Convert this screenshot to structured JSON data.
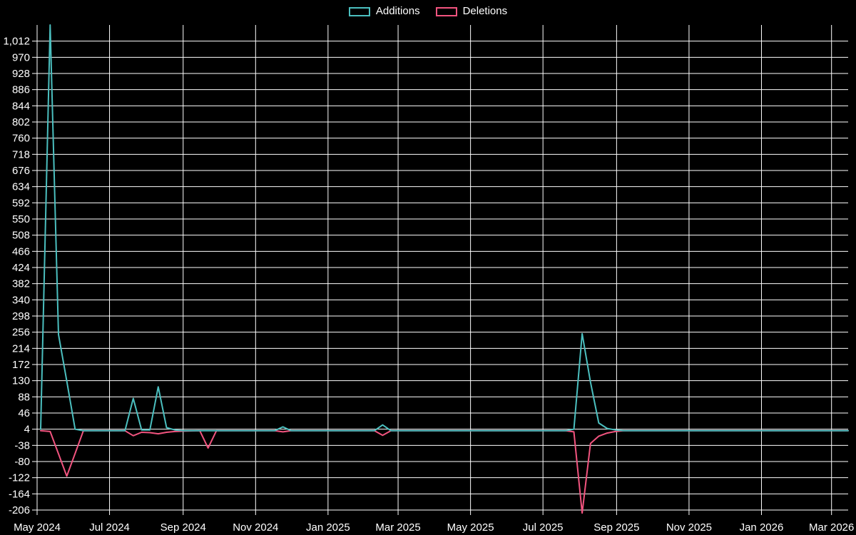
{
  "page": {
    "background_color": "#000000",
    "text_color": "#ffffff",
    "gridline_color": "#ffffff"
  },
  "legend": {
    "position": "top-center",
    "items": [
      {
        "label": "Additions",
        "color": "#4BBFBF"
      },
      {
        "label": "Deletions",
        "color": "#F2547F"
      }
    ]
  },
  "chart_data": {
    "type": "line",
    "title": "",
    "xlabel": "",
    "ylabel": "",
    "grid": true,
    "background": "#000000",
    "x_axis": {
      "kind": "time",
      "start_date": "2024-05-01",
      "end_date": "2026-03-15",
      "tick_dates": [
        "2024-05-01",
        "2024-07-01",
        "2024-09-01",
        "2024-11-01",
        "2025-01-01",
        "2025-03-01",
        "2025-05-01",
        "2025-07-01",
        "2025-09-01",
        "2025-11-01",
        "2026-01-01",
        "2026-03-01"
      ],
      "tick_labels": [
        "May 2024",
        "Jul 2024",
        "Sep 2024",
        "Nov 2024",
        "Jan 2025",
        "Mar 2025",
        "May 2025",
        "Jul 2025",
        "Sep 2025",
        "Nov 2025",
        "Jan 2026",
        "Mar 2026"
      ]
    },
    "y_axis": {
      "min": -214,
      "max": 1054,
      "tick_step": 42,
      "tick_values": [
        1012,
        970,
        928,
        886,
        844,
        802,
        760,
        718,
        676,
        634,
        592,
        550,
        508,
        466,
        424,
        382,
        340,
        298,
        256,
        214,
        172,
        130,
        88,
        46,
        4,
        -38,
        -80,
        -122,
        -164,
        -206
      ],
      "tick_labels": [
        "1,012",
        "970",
        "928",
        "886",
        "844",
        "802",
        "760",
        "718",
        "676",
        "634",
        "592",
        "550",
        "508",
        "466",
        "424",
        "382",
        "340",
        "298",
        "256",
        "214",
        "172",
        "130",
        "88",
        "46",
        "4",
        "-38",
        "-80",
        "-122",
        "-164",
        "-206"
      ]
    },
    "series": [
      {
        "name": "Additions",
        "color": "#4BBFBF",
        "points": [
          [
            "2024-05-04",
            4
          ],
          [
            "2024-05-12",
            1054
          ],
          [
            "2024-05-19",
            250
          ],
          [
            "2024-05-26",
            129
          ],
          [
            "2024-06-02",
            4
          ],
          [
            "2024-06-09",
            0
          ],
          [
            "2024-07-14",
            0
          ],
          [
            "2024-07-21",
            84
          ],
          [
            "2024-07-28",
            2
          ],
          [
            "2024-08-04",
            2
          ],
          [
            "2024-08-11",
            114
          ],
          [
            "2024-08-18",
            8
          ],
          [
            "2024-08-25",
            2
          ],
          [
            "2024-09-01",
            0
          ],
          [
            "2024-11-17",
            0
          ],
          [
            "2024-11-24",
            10
          ],
          [
            "2024-12-01",
            0
          ],
          [
            "2025-02-09",
            0
          ],
          [
            "2025-02-16",
            15
          ],
          [
            "2025-02-23",
            0
          ],
          [
            "2025-07-20",
            0
          ],
          [
            "2025-07-27",
            4
          ],
          [
            "2025-08-03",
            252
          ],
          [
            "2025-08-10",
            126
          ],
          [
            "2025-08-17",
            20
          ],
          [
            "2025-08-24",
            6
          ],
          [
            "2025-08-31",
            2
          ],
          [
            "2025-09-07",
            0
          ],
          [
            "2026-03-15",
            0
          ]
        ]
      },
      {
        "name": "Deletions",
        "color": "#F2547F",
        "points": [
          [
            "2024-05-04",
            0
          ],
          [
            "2024-05-12",
            -2
          ],
          [
            "2024-05-19",
            -60
          ],
          [
            "2024-05-26",
            -118
          ],
          [
            "2024-06-02",
            -59
          ],
          [
            "2024-06-09",
            0
          ],
          [
            "2024-07-14",
            0
          ],
          [
            "2024-07-21",
            -13
          ],
          [
            "2024-07-28",
            -4
          ],
          [
            "2024-08-04",
            -5
          ],
          [
            "2024-08-11",
            -8
          ],
          [
            "2024-08-18",
            -4
          ],
          [
            "2024-08-25",
            -2
          ],
          [
            "2024-09-01",
            -1
          ],
          [
            "2024-09-15",
            0
          ],
          [
            "2024-09-22",
            -45
          ],
          [
            "2024-09-29",
            0
          ],
          [
            "2024-11-17",
            0
          ],
          [
            "2024-11-24",
            -3
          ],
          [
            "2024-12-01",
            0
          ],
          [
            "2025-02-09",
            0
          ],
          [
            "2025-02-16",
            -12
          ],
          [
            "2025-02-23",
            0
          ],
          [
            "2025-07-20",
            0
          ],
          [
            "2025-07-27",
            -3
          ],
          [
            "2025-08-03",
            -214
          ],
          [
            "2025-08-10",
            -33
          ],
          [
            "2025-08-17",
            -14
          ],
          [
            "2025-08-24",
            -6
          ],
          [
            "2025-08-31",
            -2
          ],
          [
            "2025-09-07",
            0
          ],
          [
            "2026-03-15",
            0
          ]
        ]
      }
    ]
  }
}
